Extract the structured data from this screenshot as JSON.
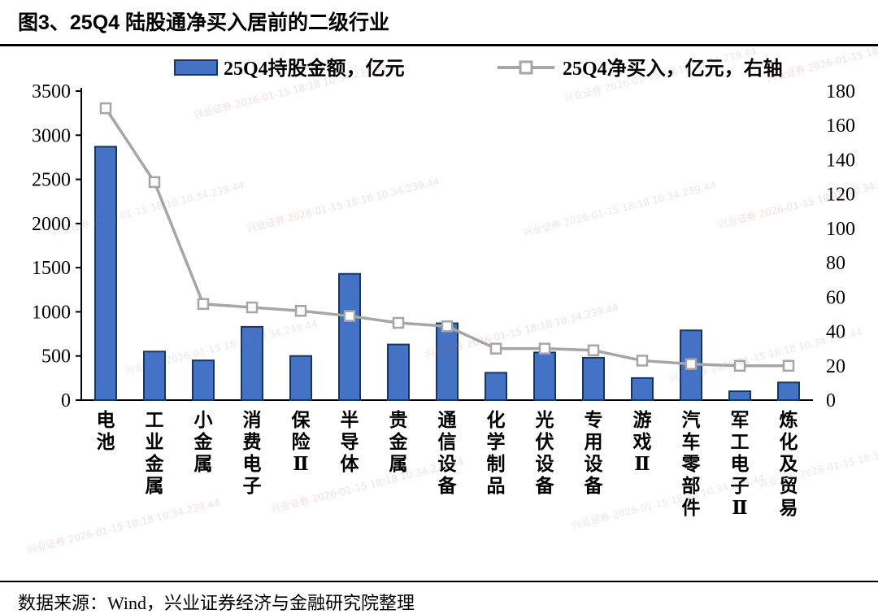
{
  "title": "图3、25Q4 陆股通净买入居前的二级行业",
  "footer": "数据来源：Wind，兴业证券经济与金融研究院整理",
  "watermark": {
    "line1": "兴业证券 2026-01-15 18:18",
    "line2": "10.34.239.44"
  },
  "chart_data": {
    "type": "bar",
    "title": "25Q4 陆股通净买入居前的二级行业",
    "categories": [
      "电池",
      "工业金属",
      "小金属",
      "消费电子",
      "保险Ⅱ",
      "半导体",
      "贵金属",
      "通信设备",
      "化学制品",
      "光伏设备",
      "专用设备",
      "游戏Ⅱ",
      "汽车零部件",
      "军工电子Ⅱ",
      "炼化及贸易"
    ],
    "series": [
      {
        "name": "25Q4持股金额，亿元",
        "type": "bar",
        "axis": "left",
        "values": [
          2870,
          550,
          450,
          830,
          500,
          1430,
          630,
          870,
          310,
          540,
          480,
          250,
          790,
          100,
          200
        ]
      },
      {
        "name": "25Q4净买入，亿元，右轴",
        "type": "line",
        "axis": "right",
        "values": [
          170,
          127,
          56,
          54,
          52,
          49,
          45,
          43,
          30,
          30,
          29,
          23,
          21,
          20,
          20
        ]
      }
    ],
    "left_axis": {
      "min": 0,
      "max": 3500,
      "step": 500
    },
    "right_axis": {
      "min": 0,
      "max": 180,
      "step": 20
    },
    "colors": {
      "bar_fill": "#4472C4",
      "bar_stroke": "#17375E",
      "line": "#A6A6A6",
      "marker_fill": "#FFFFFF",
      "axis": "#000000"
    },
    "legend_position": "top",
    "grid": false
  }
}
